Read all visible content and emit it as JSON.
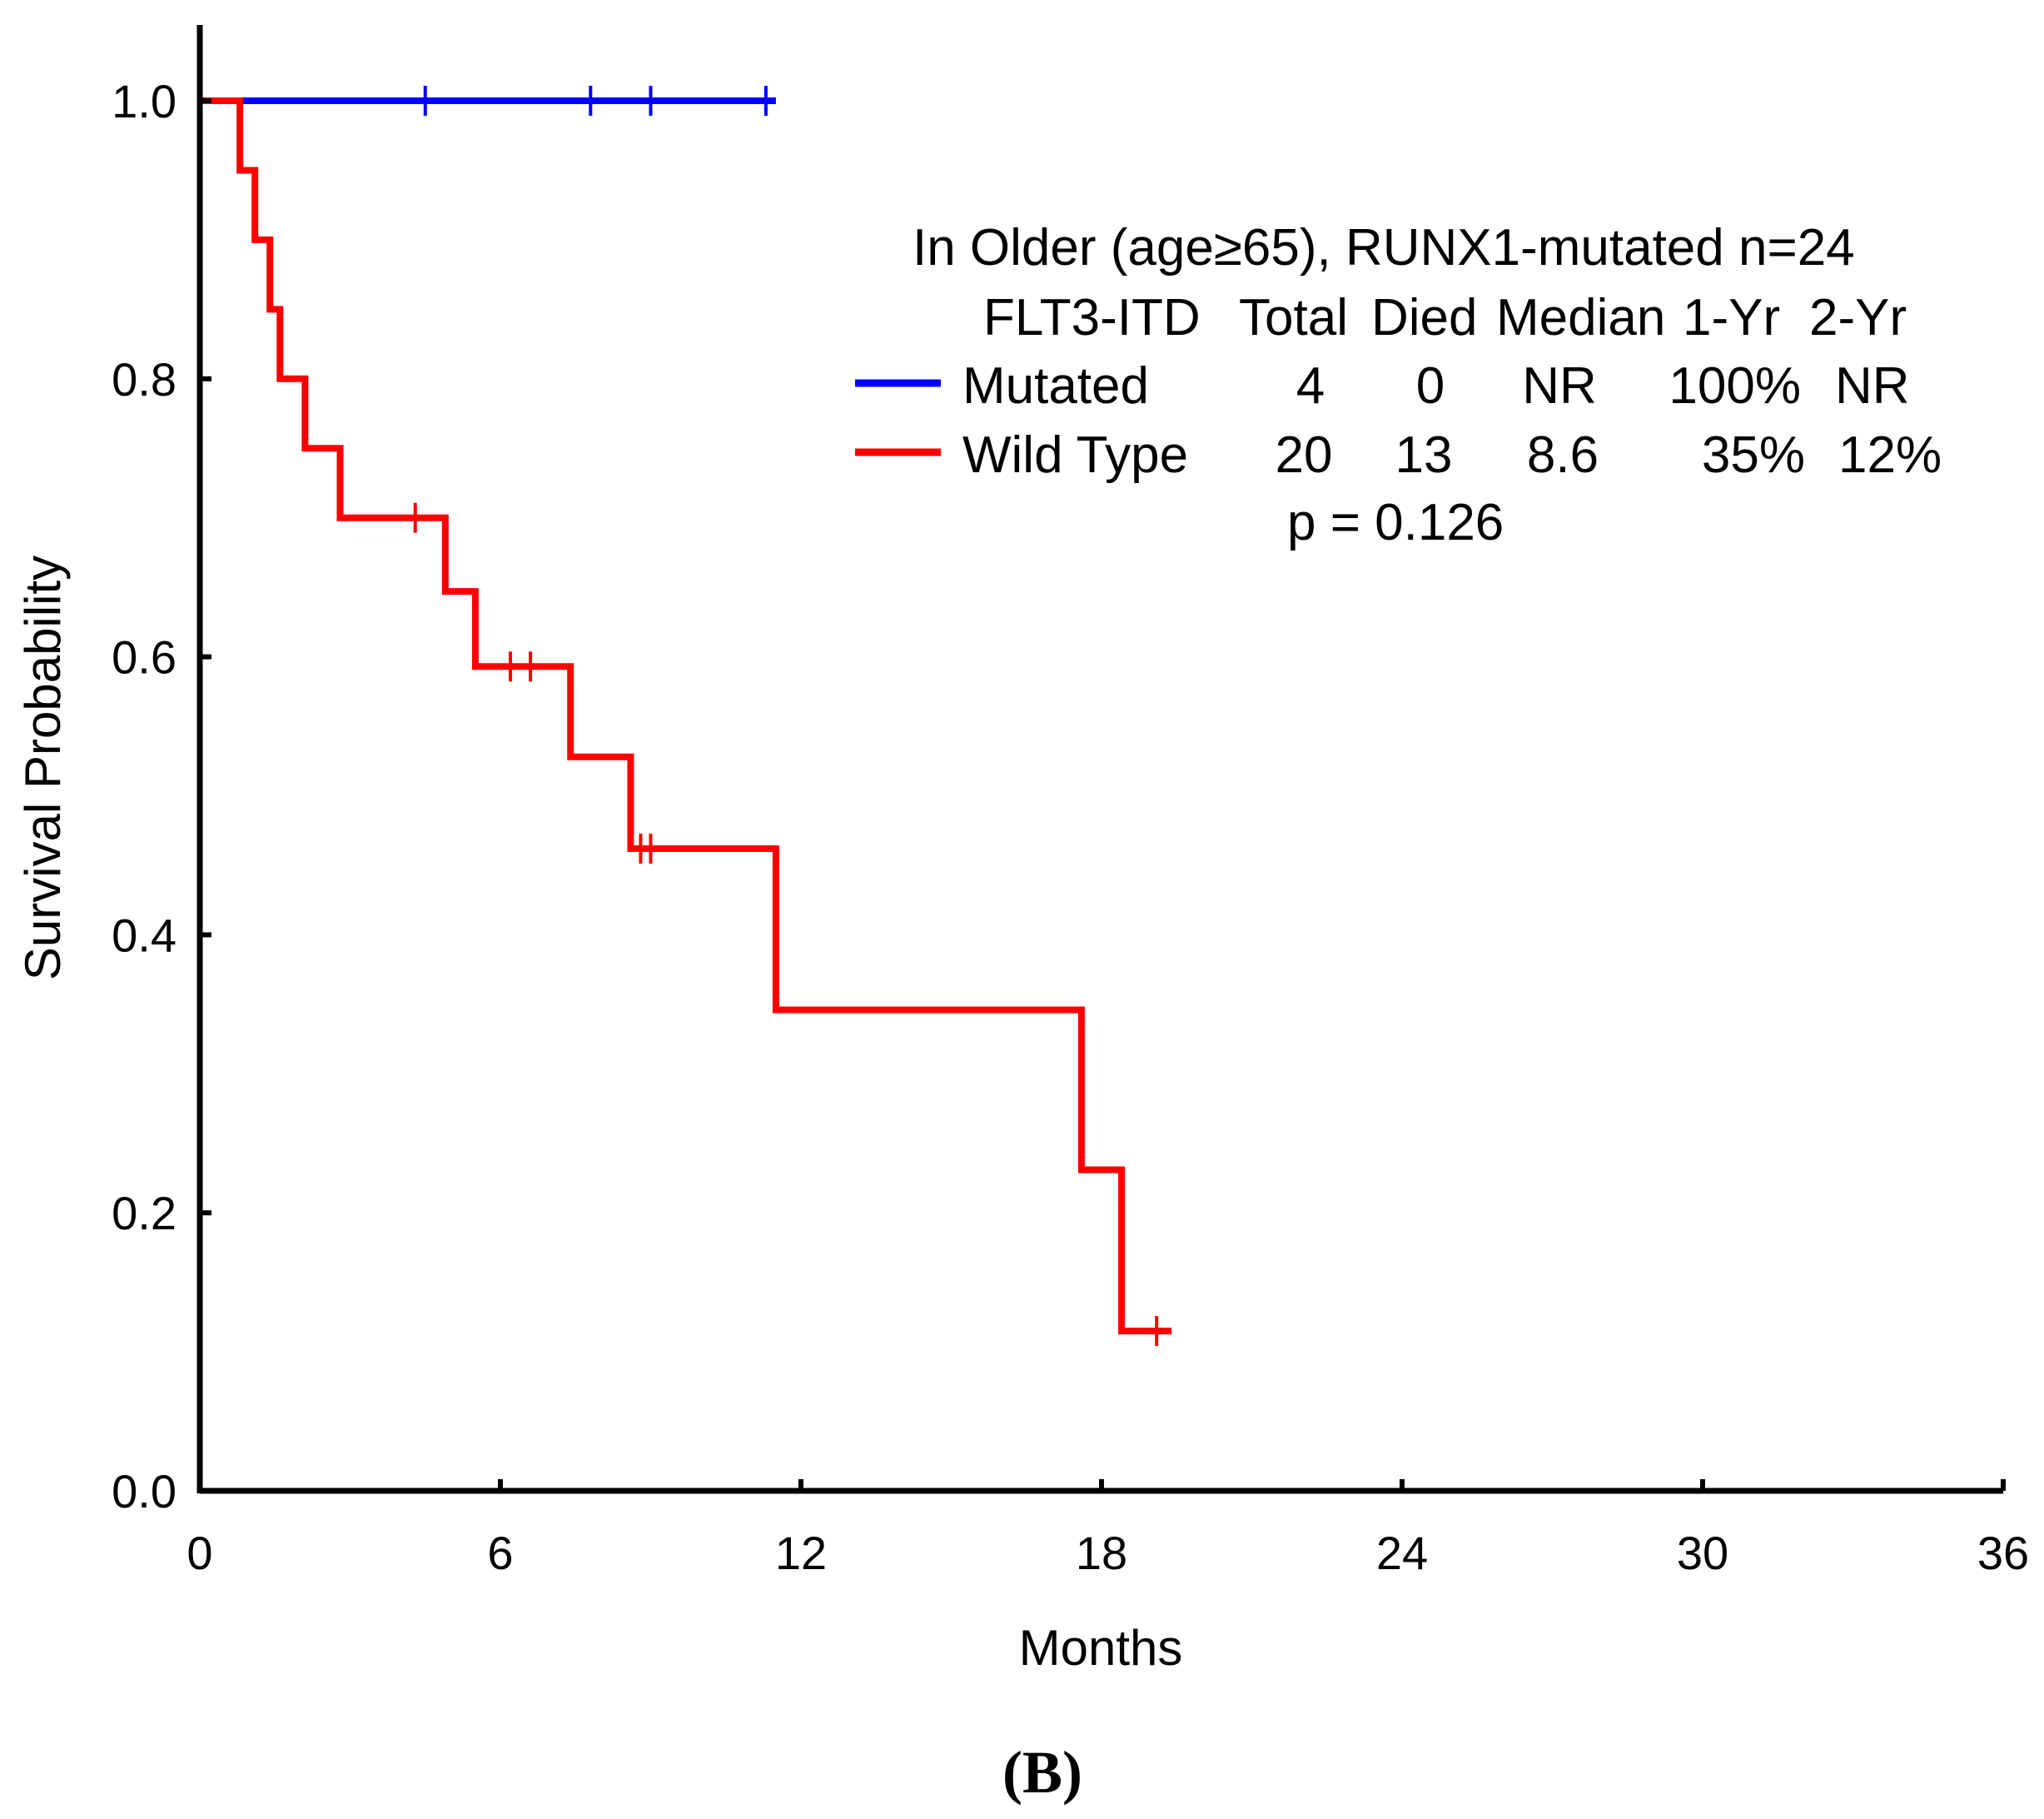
{
  "chart_data": {
    "type": "line",
    "subtype": "kaplan-meier",
    "xlabel": "Months",
    "ylabel": "Survival Probability",
    "xlim": [
      0,
      36
    ],
    "ylim": [
      0,
      1.0
    ],
    "x_ticks": [
      0,
      6,
      12,
      18,
      24,
      30,
      36
    ],
    "y_ticks": [
      0.0,
      0.2,
      0.4,
      0.6,
      0.8,
      1.0
    ],
    "y_tick_labels": [
      "0.0",
      "0.2",
      "0.4",
      "0.6",
      "0.8",
      "1.0"
    ],
    "grid": false,
    "panel_label": "(B)",
    "legend": {
      "title": "In Older (age≥65), RUNX1-mutated n=24",
      "header": [
        "FLT3-ITD",
        "Total",
        "Died",
        "Median",
        "1-Yr",
        "2-Yr"
      ],
      "rows": [
        {
          "name": "Mutated",
          "total": "4",
          "died": "0",
          "median": "NR",
          "yr1": "100%",
          "yr2": "NR"
        },
        {
          "name": "Wild Type",
          "total": "20",
          "died": "13",
          "median": "8.6",
          "yr1": "35%",
          "yr2": "12%"
        }
      ],
      "pvalue": "p = 0.126"
    },
    "series": [
      {
        "name": "Mutated",
        "color": "#0000ff",
        "steps": [
          [
            0,
            1.0
          ],
          [
            11.5,
            1.0
          ]
        ],
        "censor_x": [
          4.5,
          7.8,
          9.0,
          11.3
        ]
      },
      {
        "name": "Wild Type",
        "color": "#ff0000",
        "steps": [
          [
            0,
            1.0
          ],
          [
            0.8,
            0.95
          ],
          [
            1.1,
            0.9
          ],
          [
            1.4,
            0.85
          ],
          [
            1.6,
            0.8
          ],
          [
            2.1,
            0.75
          ],
          [
            2.8,
            0.7
          ],
          [
            4.9,
            0.647
          ],
          [
            5.5,
            0.593
          ],
          [
            7.4,
            0.528
          ],
          [
            8.6,
            0.462
          ],
          [
            11.5,
            0.346
          ],
          [
            17.6,
            0.231
          ],
          [
            18.4,
            0.115
          ],
          [
            19.4,
            0.115
          ]
        ],
        "censor_points": [
          [
            4.3,
            0.7
          ],
          [
            6.2,
            0.593
          ],
          [
            6.6,
            0.593
          ],
          [
            8.8,
            0.462
          ],
          [
            9.0,
            0.462
          ],
          [
            19.1,
            0.115
          ]
        ]
      }
    ]
  }
}
